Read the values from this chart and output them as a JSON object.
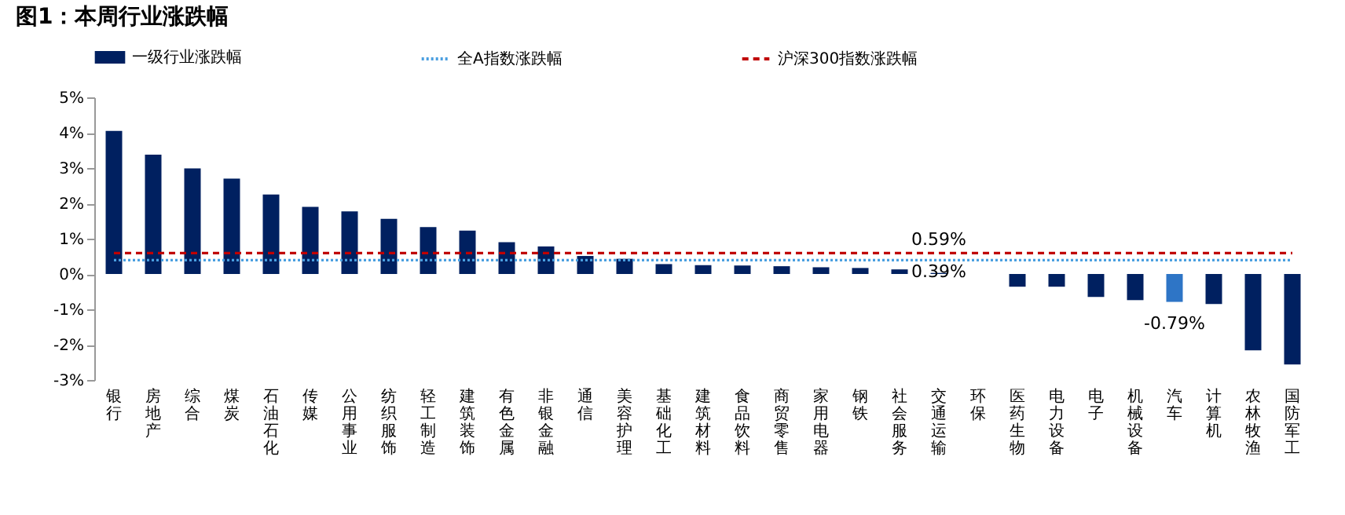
{
  "chart_data": {
    "type": "bar",
    "title": "图1：本周行业涨跌幅",
    "categories": [
      "银行",
      "房地产",
      "综合",
      "煤炭",
      "石油石化",
      "传媒",
      "公用事业",
      "纺织服饰",
      "轻工制造",
      "建筑装饰",
      "有色金属",
      "非银金融",
      "通信",
      "美容护理",
      "基础化工",
      "建筑材料",
      "食品饮料",
      "商贸零售",
      "家用电器",
      "钢铁",
      "社会服务",
      "交通运输",
      "环保",
      "医药生物",
      "电力设备",
      "电子",
      "机械设备",
      "汽车",
      "计算机",
      "农林牧渔",
      "国防军工"
    ],
    "series": [
      {
        "name": "一级行业涨跌幅",
        "color": "#002060",
        "colors": [
          "#002060",
          "#002060",
          "#002060",
          "#002060",
          "#002060",
          "#002060",
          "#002060",
          "#002060",
          "#002060",
          "#002060",
          "#002060",
          "#002060",
          "#002060",
          "#002060",
          "#002060",
          "#002060",
          "#002060",
          "#002060",
          "#002060",
          "#002060",
          "#002060",
          "#002060",
          "#002060",
          "#002060",
          "#002060",
          "#002060",
          "#002060",
          "#2e75c6",
          "#002060",
          "#002060",
          "#002060"
        ],
        "values": [
          4.05,
          3.38,
          2.99,
          2.7,
          2.25,
          1.9,
          1.77,
          1.56,
          1.33,
          1.23,
          0.9,
          0.78,
          0.51,
          0.43,
          0.28,
          0.25,
          0.24,
          0.22,
          0.19,
          0.17,
          0.13,
          0.03,
          0,
          -0.36,
          -0.36,
          -0.65,
          -0.74,
          -0.79,
          -0.85,
          -2.16,
          -2.56
        ],
        "value_labels": [
          null,
          null,
          null,
          null,
          null,
          null,
          null,
          null,
          null,
          null,
          null,
          null,
          null,
          null,
          null,
          null,
          null,
          null,
          null,
          null,
          null,
          null,
          null,
          null,
          null,
          null,
          null,
          "-0.79%",
          null,
          null,
          null
        ]
      },
      {
        "name": "全A指数涨跌幅",
        "type": "line",
        "color": "#4a9fe0",
        "line_style": "dotted",
        "values": [
          0.39,
          0.39,
          0.39,
          0.39,
          0.39,
          0.39,
          0.39,
          0.39,
          0.39,
          0.39,
          0.39,
          0.39,
          0.39,
          0.39,
          0.39,
          0.39,
          0.39,
          0.39,
          0.39,
          0.39,
          0.39,
          0.39,
          0.39,
          0.39,
          0.39,
          0.39,
          0.39,
          0.39,
          0.39,
          0.39,
          0.39
        ]
      },
      {
        "name": "沪深300指数涨跌幅",
        "type": "line",
        "color": "#c00000",
        "line_style": "dashed",
        "values": [
          0.59,
          0.59,
          0.59,
          0.59,
          0.59,
          0.59,
          0.59,
          0.59,
          0.59,
          0.59,
          0.59,
          0.59,
          0.59,
          0.59,
          0.59,
          0.59,
          0.59,
          0.59,
          0.59,
          0.59,
          0.59,
          0.59,
          0.59,
          0.59,
          0.59,
          0.59,
          0.59,
          0.59,
          0.59,
          0.59,
          0.59
        ]
      }
    ],
    "annotations": [
      {
        "text": "0.59%",
        "x": "交通运输",
        "y": 0.59
      },
      {
        "text": "0.39%",
        "x": "交通运输",
        "y": 0.39
      }
    ],
    "ylim": [
      -3,
      5
    ],
    "yticks": [
      {
        "value": -3,
        "label": "-3%"
      },
      {
        "value": -2,
        "label": "-2%"
      },
      {
        "value": -1,
        "label": "-1%"
      },
      {
        "value": 0,
        "label": "0%"
      },
      {
        "value": 1,
        "label": "1%"
      },
      {
        "value": 2,
        "label": "2%"
      },
      {
        "value": 3,
        "label": "3%"
      },
      {
        "value": 4,
        "label": "4%"
      },
      {
        "value": 5,
        "label": "5%"
      }
    ],
    "grid": false,
    "legend": "top"
  }
}
